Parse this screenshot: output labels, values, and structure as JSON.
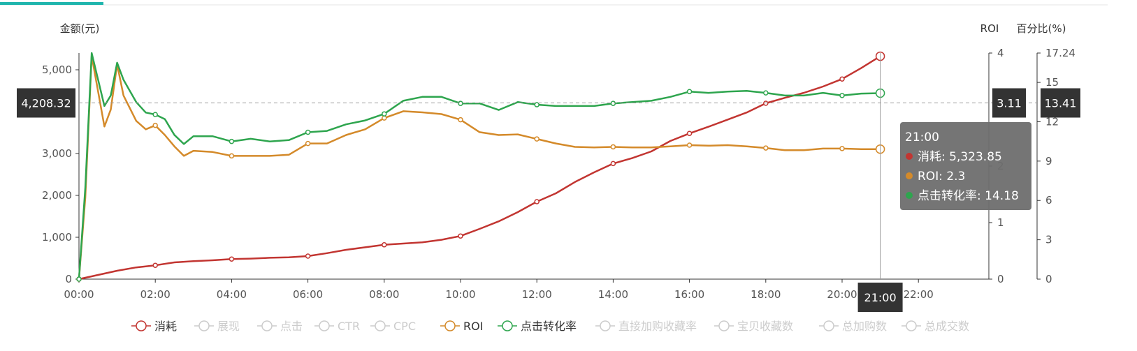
{
  "colors": {
    "accent": "#1fb5ad",
    "consume": "#c23531",
    "roi": "#d48a2a",
    "click_conversion": "#2ea54e",
    "inactive": "#cccccc",
    "tooltip_bg": "#6e6e6e",
    "pointer_bg": "#333333"
  },
  "chart_data": {
    "type": "line",
    "grid": false,
    "axes": {
      "x": {
        "ticks": [
          "00:00",
          "02:00",
          "04:00",
          "06:00",
          "08:00",
          "10:00",
          "12:00",
          "14:00",
          "16:00",
          "18:00",
          "20:00",
          "22:00"
        ],
        "range": [
          "00:00",
          "23:00"
        ]
      },
      "y_left": {
        "name": "金额(元)",
        "ticks": [
          "0",
          "1,000",
          "2,000",
          "3,000",
          "5,000"
        ],
        "tick_values": [
          0,
          1000,
          2000,
          3000,
          5000
        ],
        "range": [
          0,
          5400
        ]
      },
      "y_roi": {
        "name": "ROI",
        "ticks": [
          "0",
          "1",
          "2",
          "4"
        ],
        "tick_values": [
          0,
          1,
          2,
          4
        ],
        "range": [
          0,
          4
        ]
      },
      "y_percent": {
        "name": "百分比(%)",
        "ticks": [
          "0",
          "3",
          "6",
          "9",
          "12",
          "15",
          "17.24"
        ],
        "tick_values": [
          0,
          3,
          6,
          9,
          12,
          15,
          17.24
        ],
        "range": [
          0,
          17.24
        ]
      }
    },
    "series": [
      {
        "name": "消耗",
        "axis": "y_left",
        "color": "#c23531",
        "points": [
          [
            "00:00",
            0
          ],
          [
            "00:30",
            100
          ],
          [
            "01:00",
            200
          ],
          [
            "01:30",
            280
          ],
          [
            "02:00",
            330
          ],
          [
            "02:30",
            400
          ],
          [
            "03:00",
            430
          ],
          [
            "03:30",
            450
          ],
          [
            "04:00",
            480
          ],
          [
            "04:30",
            490
          ],
          [
            "05:00",
            510
          ],
          [
            "05:30",
            520
          ],
          [
            "06:00",
            550
          ],
          [
            "06:30",
            620
          ],
          [
            "07:00",
            700
          ],
          [
            "07:30",
            760
          ],
          [
            "08:00",
            820
          ],
          [
            "08:30",
            850
          ],
          [
            "09:00",
            880
          ],
          [
            "09:30",
            940
          ],
          [
            "10:00",
            1030
          ],
          [
            "10:30",
            1200
          ],
          [
            "11:00",
            1380
          ],
          [
            "11:30",
            1600
          ],
          [
            "12:00",
            1850
          ],
          [
            "12:30",
            2050
          ],
          [
            "13:00",
            2320
          ],
          [
            "13:30",
            2550
          ],
          [
            "14:00",
            2760
          ],
          [
            "14:30",
            2890
          ],
          [
            "15:00",
            3050
          ],
          [
            "15:30",
            3300
          ],
          [
            "16:00",
            3480
          ],
          [
            "16:30",
            3640
          ],
          [
            "17:00",
            3810
          ],
          [
            "17:30",
            3980
          ],
          [
            "18:00",
            4200
          ],
          [
            "18:30",
            4330
          ],
          [
            "19:00",
            4450
          ],
          [
            "19:30",
            4600
          ],
          [
            "20:00",
            4780
          ],
          [
            "20:30",
            5040
          ],
          [
            "21:00",
            5323.85
          ]
        ]
      },
      {
        "name": "ROI",
        "axis": "y_roi",
        "color": "#d48a2a",
        "points": [
          [
            "00:00",
            0
          ],
          [
            "00:10",
            1.45
          ],
          [
            "00:20",
            3.95
          ],
          [
            "00:40",
            2.7
          ],
          [
            "00:50",
            3.0
          ],
          [
            "01:00",
            3.8
          ],
          [
            "01:10",
            3.25
          ],
          [
            "01:30",
            2.8
          ],
          [
            "01:45",
            2.65
          ],
          [
            "02:00",
            2.72
          ],
          [
            "02:15",
            2.55
          ],
          [
            "02:30",
            2.35
          ],
          [
            "02:45",
            2.18
          ],
          [
            "03:00",
            2.27
          ],
          [
            "03:30",
            2.25
          ],
          [
            "04:00",
            2.18
          ],
          [
            "04:30",
            2.18
          ],
          [
            "05:00",
            2.18
          ],
          [
            "05:30",
            2.2
          ],
          [
            "06:00",
            2.4
          ],
          [
            "06:30",
            2.4
          ],
          [
            "07:00",
            2.55
          ],
          [
            "07:30",
            2.65
          ],
          [
            "08:00",
            2.85
          ],
          [
            "08:30",
            2.97
          ],
          [
            "09:00",
            2.95
          ],
          [
            "09:30",
            2.92
          ],
          [
            "10:00",
            2.82
          ],
          [
            "10:30",
            2.6
          ],
          [
            "11:00",
            2.55
          ],
          [
            "11:30",
            2.56
          ],
          [
            "12:00",
            2.48
          ],
          [
            "12:30",
            2.4
          ],
          [
            "13:00",
            2.34
          ],
          [
            "13:30",
            2.33
          ],
          [
            "14:00",
            2.34
          ],
          [
            "14:30",
            2.33
          ],
          [
            "15:00",
            2.33
          ],
          [
            "15:30",
            2.35
          ],
          [
            "16:00",
            2.37
          ],
          [
            "16:30",
            2.36
          ],
          [
            "17:00",
            2.37
          ],
          [
            "17:30",
            2.35
          ],
          [
            "18:00",
            2.32
          ],
          [
            "18:30",
            2.28
          ],
          [
            "19:00",
            2.28
          ],
          [
            "19:30",
            2.31
          ],
          [
            "20:00",
            2.31
          ],
          [
            "20:30",
            2.3
          ],
          [
            "21:00",
            2.3
          ]
        ]
      },
      {
        "name": "点击转化率",
        "axis": "y_percent",
        "color": "#2ea54e",
        "points": [
          [
            "00:00",
            0
          ],
          [
            "00:10",
            7
          ],
          [
            "00:20",
            17.24
          ],
          [
            "00:40",
            13.2
          ],
          [
            "00:50",
            14.0
          ],
          [
            "01:00",
            16.5
          ],
          [
            "01:10",
            15.2
          ],
          [
            "01:30",
            13.5
          ],
          [
            "01:45",
            12.7
          ],
          [
            "02:00",
            12.55
          ],
          [
            "02:15",
            12.2
          ],
          [
            "02:30",
            11.0
          ],
          [
            "02:45",
            10.3
          ],
          [
            "03:00",
            10.9
          ],
          [
            "03:30",
            10.9
          ],
          [
            "04:00",
            10.5
          ],
          [
            "04:30",
            10.7
          ],
          [
            "05:00",
            10.5
          ],
          [
            "05:30",
            10.6
          ],
          [
            "06:00",
            11.2
          ],
          [
            "06:30",
            11.3
          ],
          [
            "07:00",
            11.8
          ],
          [
            "07:30",
            12.1
          ],
          [
            "08:00",
            12.6
          ],
          [
            "08:30",
            13.6
          ],
          [
            "09:00",
            13.9
          ],
          [
            "09:30",
            13.9
          ],
          [
            "10:00",
            13.4
          ],
          [
            "10:30",
            13.4
          ],
          [
            "11:00",
            12.9
          ],
          [
            "11:30",
            13.5
          ],
          [
            "12:00",
            13.3
          ],
          [
            "12:30",
            13.2
          ],
          [
            "13:00",
            13.2
          ],
          [
            "13:30",
            13.2
          ],
          [
            "14:00",
            13.4
          ],
          [
            "14:30",
            13.5
          ],
          [
            "15:00",
            13.6
          ],
          [
            "15:30",
            13.9
          ],
          [
            "16:00",
            14.3
          ],
          [
            "16:30",
            14.2
          ],
          [
            "17:00",
            14.3
          ],
          [
            "17:30",
            14.35
          ],
          [
            "18:00",
            14.2
          ],
          [
            "18:30",
            14.0
          ],
          [
            "19:00",
            14.0
          ],
          [
            "19:30",
            14.2
          ],
          [
            "20:00",
            14.0
          ],
          [
            "20:30",
            14.15
          ],
          [
            "21:00",
            14.18
          ]
        ]
      }
    ],
    "cursor": {
      "x_label": "21:00",
      "y_left_label": "4,208.32",
      "y_roi_label": "3.11",
      "y_percent_label": "13.41"
    },
    "tooltip": {
      "title": "21:00",
      "rows": [
        {
          "label": "消耗: 5,323.85",
          "color": "#c23531"
        },
        {
          "label": "ROI: 2.3",
          "color": "#d48a2a"
        },
        {
          "label": "点击转化率: 14.18",
          "color": "#2ea54e"
        }
      ]
    },
    "legend": {
      "placement": "bottom-center",
      "items": [
        {
          "name": "消耗",
          "active": true,
          "color": "#c23531"
        },
        {
          "name": "展现",
          "active": false
        },
        {
          "name": "点击",
          "active": false
        },
        {
          "name": "CTR",
          "active": false
        },
        {
          "name": "CPC",
          "active": false
        },
        {
          "name": "ROI",
          "active": true,
          "color": "#d48a2a"
        },
        {
          "name": "点击转化率",
          "active": true,
          "color": "#2ea54e"
        },
        {
          "name": "直接加购收藏率",
          "active": false
        },
        {
          "name": "宝贝收藏数",
          "active": false
        },
        {
          "name": "总加购数",
          "active": false
        },
        {
          "name": "总成交数",
          "active": false
        }
      ]
    }
  }
}
